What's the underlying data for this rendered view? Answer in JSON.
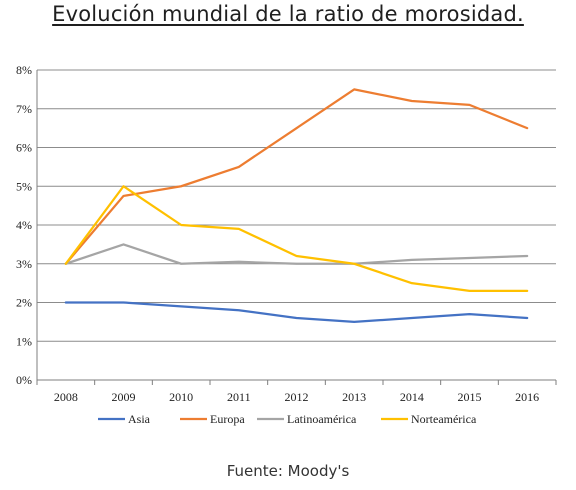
{
  "page": {
    "title": "Evolución mundial de la ratio de morosidad.",
    "source": "Fuente: Moody's"
  },
  "chart_data": {
    "type": "line",
    "title": "Evolución mundial de la ratio de morosidad.",
    "xlabel": "",
    "ylabel": "",
    "x": [
      "2008",
      "2009",
      "2010",
      "2011",
      "2012",
      "2013",
      "2014",
      "2015",
      "2016"
    ],
    "ylim": [
      0,
      8
    ],
    "y_ticks": [
      "0%",
      "1%",
      "2%",
      "3%",
      "4%",
      "5%",
      "6%",
      "7%",
      "8%"
    ],
    "grid": true,
    "legend_position": "bottom",
    "series": [
      {
        "name": "Asia",
        "color": "#4472C4",
        "values": [
          2.0,
          2.0,
          1.9,
          1.8,
          1.6,
          1.5,
          1.6,
          1.7,
          1.6
        ]
      },
      {
        "name": "Europa",
        "color": "#ED7D31",
        "values": [
          3.0,
          4.75,
          5.0,
          5.5,
          6.5,
          7.5,
          7.2,
          7.1,
          6.5
        ]
      },
      {
        "name": "Latinoamérica",
        "color": "#A5A5A5",
        "values": [
          3.0,
          3.5,
          3.0,
          3.05,
          3.0,
          3.0,
          3.1,
          3.15,
          3.2
        ]
      },
      {
        "name": "Norteamérica",
        "color": "#FFC000",
        "values": [
          3.0,
          5.0,
          4.0,
          3.9,
          3.2,
          3.0,
          2.5,
          2.3,
          2.3
        ]
      }
    ]
  }
}
